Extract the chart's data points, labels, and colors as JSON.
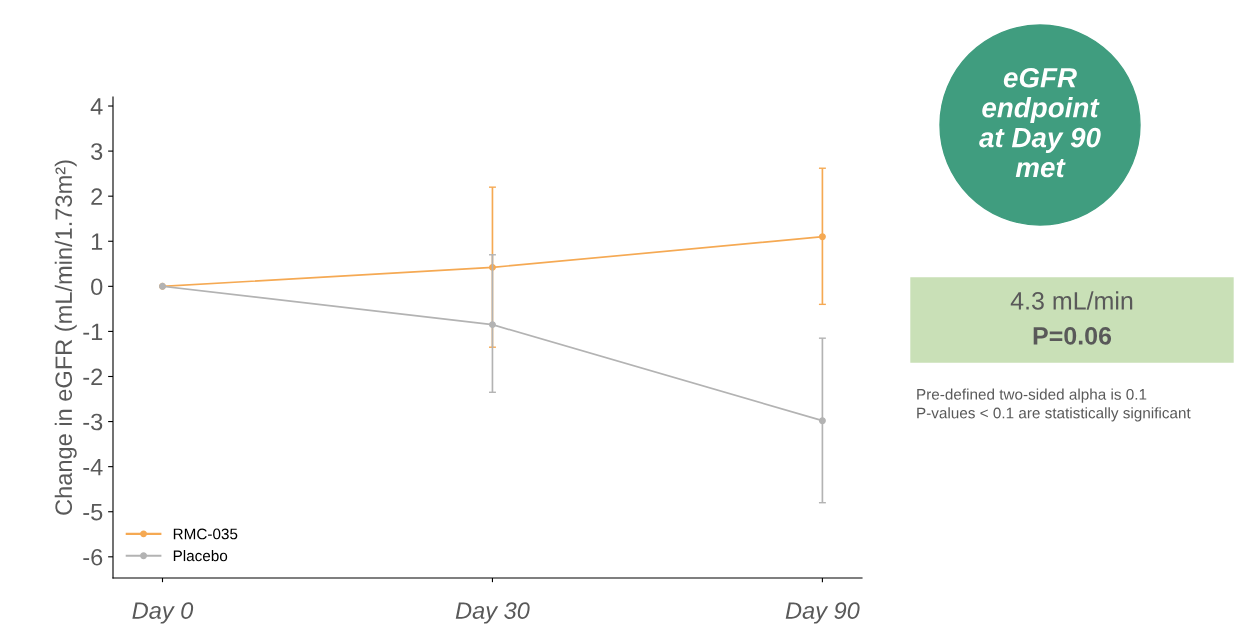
{
  "chart_data": {
    "type": "line",
    "ylabel": "Change in eGFR (mL/min/1.73m²)",
    "categories": [
      "Day 0",
      "Day 30",
      "Day 90"
    ],
    "ylim": [
      -6.47,
      4.2
    ],
    "yticks": [
      -6,
      -5,
      -4,
      -3,
      -2,
      -1,
      0,
      1,
      2,
      3,
      4
    ],
    "series": [
      {
        "name": "RMC-035",
        "color": "#f5a953",
        "values": [
          0,
          0.42,
          1.1
        ],
        "errors": [
          null,
          [
            -1.35,
            2.2
          ],
          [
            -0.4,
            2.62
          ]
        ]
      },
      {
        "name": "Placebo",
        "color": "#b3b3b3",
        "values": [
          0,
          -0.85,
          -2.98
        ],
        "errors": [
          null,
          [
            -2.35,
            0.7
          ],
          [
            -4.8,
            -1.15
          ]
        ]
      }
    ],
    "marker": "circle",
    "line_style": "solid",
    "grid": false,
    "legend": "bottom left",
    "annotations": [
      "eGFR\nendpoint\nat Day 90\nmet",
      "4.3 mL/min",
      "P=0.06",
      "Pre-defined two-sided alpha is 0.1\nP-values < 0.1 are statistically significant"
    ]
  }
}
